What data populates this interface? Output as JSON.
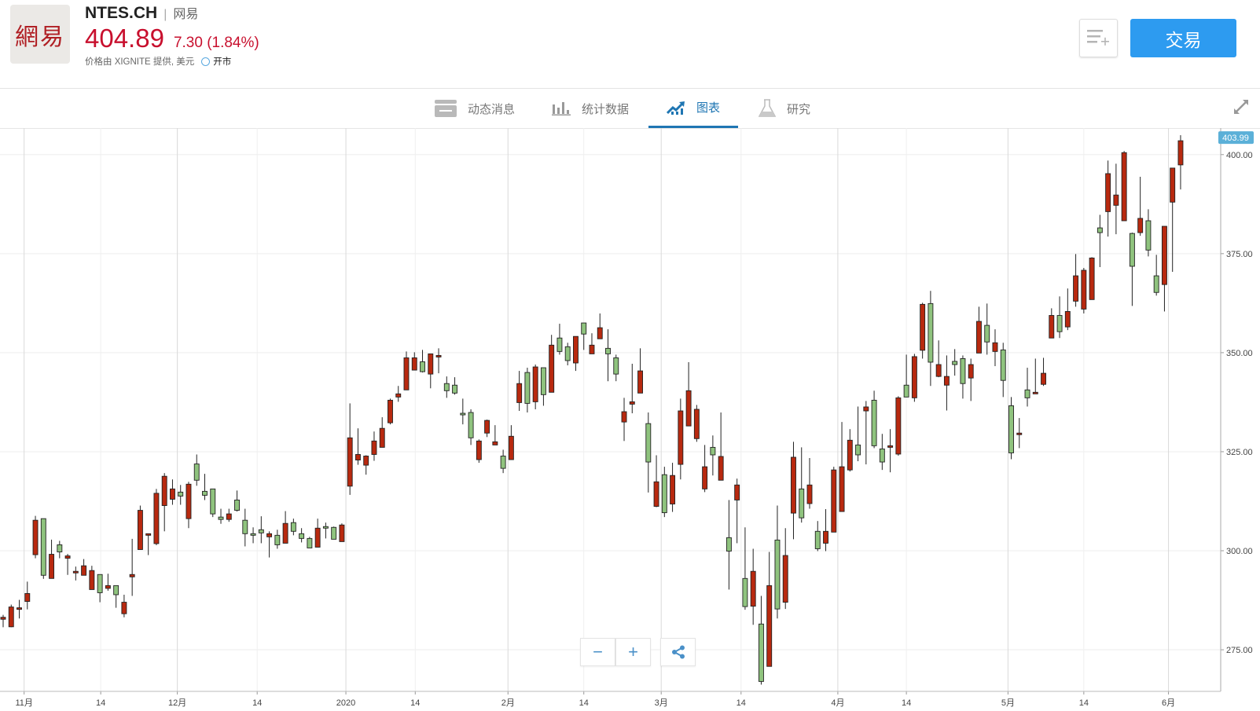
{
  "header": {
    "logo_text": "網易",
    "ticker": "NTES.CH",
    "separator": "|",
    "name": "网易",
    "price": "404.89",
    "change": "7.30 (1.84%)",
    "source": "价格由 XIGNITE 提供, 美元",
    "market_status": "开市",
    "trade_button": "交易",
    "watchlist_icon": "add-to-list-icon",
    "price_color": "#c8102e",
    "accent": "#2d9bf0"
  },
  "tabs": [
    {
      "label": "动态消息",
      "icon": "news-icon",
      "active": false
    },
    {
      "label": "统计数据",
      "icon": "bar-stats-icon",
      "active": false
    },
    {
      "label": "图表",
      "icon": "chart-icon",
      "active": true
    },
    {
      "label": "研究",
      "icon": "flask-icon",
      "active": false
    }
  ],
  "controls": {
    "zoom_out": "−",
    "zoom_in": "+",
    "share_icon": "share-icon",
    "expand_icon": "expand-icon"
  },
  "chart_data": {
    "type": "candlestick",
    "up_color": "#b8290f",
    "down_color": "#8fc37e",
    "last_price_label": "403.99",
    "ylim": [
      264.5,
      406.7
    ],
    "y_ticks": [
      {
        "value": 400,
        "label": "400.00"
      },
      {
        "value": 375,
        "label": "375.00"
      },
      {
        "value": 350,
        "label": "350.00"
      },
      {
        "value": 325,
        "label": "325.00"
      },
      {
        "value": 300,
        "label": "300.00"
      },
      {
        "value": 275,
        "label": "275.00"
      }
    ],
    "x_ticks": [
      {
        "label": "11月",
        "candle": 2.6,
        "major": true
      },
      {
        "label": "14",
        "candle": 12.1,
        "major": false
      },
      {
        "label": "12月",
        "candle": 21.6,
        "major": true
      },
      {
        "label": "14",
        "candle": 31.5,
        "major": false
      },
      {
        "label": "2020",
        "candle": 42.5,
        "major": true
      },
      {
        "label": "14",
        "candle": 51.1,
        "major": false
      },
      {
        "label": "2月",
        "candle": 62.6,
        "major": true
      },
      {
        "label": "14",
        "candle": 72.0,
        "major": false
      },
      {
        "label": "3月",
        "candle": 81.6,
        "major": true
      },
      {
        "label": "14",
        "candle": 91.5,
        "major": false
      },
      {
        "label": "4月",
        "candle": 103.5,
        "major": true
      },
      {
        "label": "14",
        "candle": 112.0,
        "major": false
      },
      {
        "label": "5月",
        "candle": 124.6,
        "major": true
      },
      {
        "label": "14",
        "candle": 134.0,
        "major": false
      },
      {
        "label": "6月",
        "candle": 144.5,
        "major": true
      }
    ],
    "ohlc_fields": [
      "open",
      "high",
      "low",
      "close"
    ],
    "candles": [
      [
        282.7,
        283.8,
        280.7,
        283.2
      ],
      [
        280.8,
        286.4,
        280.7,
        285.8
      ],
      [
        285.2,
        287.6,
        282.9,
        285.6
      ],
      [
        287.2,
        292.2,
        285.2,
        289.2
      ],
      [
        299.0,
        308.8,
        298.1,
        307.7
      ],
      [
        308.1,
        308.1,
        292.9,
        293.8
      ],
      [
        293.0,
        302.8,
        293.0,
        299.1
      ],
      [
        301.5,
        302.5,
        298.1,
        299.7
      ],
      [
        298.1,
        299.2,
        293.9,
        298.7
      ],
      [
        294.4,
        296.0,
        292.5,
        294.8
      ],
      [
        293.8,
        297.9,
        293.8,
        296.2
      ],
      [
        290.2,
        296.2,
        290.2,
        295.0
      ],
      [
        294.0,
        294.0,
        287.0,
        289.4
      ],
      [
        290.5,
        294.2,
        289.9,
        291.2
      ],
      [
        291.2,
        291.2,
        285.6,
        288.9
      ],
      [
        284.1,
        288.9,
        283.2,
        287.0
      ],
      [
        293.4,
        303.0,
        288.6,
        294.0
      ],
      [
        300.3,
        311.4,
        300.3,
        310.2
      ],
      [
        303.9,
        304.3,
        298.9,
        304.3
      ],
      [
        301.8,
        315.6,
        301.4,
        314.5
      ],
      [
        311.4,
        319.6,
        304.9,
        318.8
      ],
      [
        313.0,
        318.0,
        311.6,
        315.6
      ],
      [
        314.8,
        316.6,
        311.6,
        313.8
      ],
      [
        308.1,
        317.4,
        305.7,
        316.8
      ],
      [
        321.9,
        324.3,
        316.4,
        317.8
      ],
      [
        315.0,
        319.4,
        312.8,
        314.0
      ],
      [
        315.6,
        315.6,
        308.5,
        309.3
      ],
      [
        308.5,
        310.6,
        306.8,
        307.9
      ],
      [
        307.9,
        310.6,
        307.3,
        309.3
      ],
      [
        312.8,
        315.2,
        309.9,
        310.2
      ],
      [
        307.7,
        310.6,
        301.1,
        304.3
      ],
      [
        304.3,
        305.9,
        301.9,
        303.9
      ],
      [
        305.3,
        308.7,
        301.9,
        304.5
      ],
      [
        303.5,
        304.9,
        298.3,
        304.3
      ],
      [
        303.9,
        305.3,
        300.5,
        301.5
      ],
      [
        301.9,
        310.0,
        301.9,
        306.9
      ],
      [
        307.1,
        308.1,
        303.9,
        304.9
      ],
      [
        304.3,
        305.7,
        302.1,
        303.1
      ],
      [
        303.1,
        303.5,
        300.7,
        300.7
      ],
      [
        300.9,
        308.1,
        300.9,
        305.7
      ],
      [
        306.1,
        307.1,
        303.1,
        305.7
      ],
      [
        305.9,
        306.1,
        302.9,
        302.9
      ],
      [
        302.3,
        306.9,
        302.3,
        306.5
      ],
      [
        316.3,
        337.2,
        314.1,
        328.5
      ],
      [
        322.9,
        330.9,
        321.7,
        324.3
      ],
      [
        321.6,
        324.1,
        319.2,
        323.9
      ],
      [
        324.3,
        330.1,
        322.7,
        327.7
      ],
      [
        326.1,
        333.7,
        326.1,
        330.9
      ],
      [
        332.3,
        338.4,
        331.9,
        338.0
      ],
      [
        338.8,
        341.6,
        337.6,
        339.6
      ],
      [
        340.6,
        350.3,
        340.6,
        348.7
      ],
      [
        345.6,
        350.1,
        345.6,
        348.7
      ],
      [
        347.7,
        350.7,
        345.0,
        345.2
      ],
      [
        344.6,
        349.7,
        341.0,
        349.7
      ],
      [
        348.9,
        351.1,
        344.8,
        349.3
      ],
      [
        342.2,
        344.0,
        338.6,
        340.4
      ],
      [
        341.8,
        343.8,
        339.4,
        339.8
      ],
      [
        334.7,
        338.4,
        331.9,
        334.3
      ],
      [
        334.9,
        335.7,
        326.7,
        328.5
      ],
      [
        323.0,
        328.1,
        322.2,
        327.7
      ],
      [
        329.7,
        333.1,
        328.7,
        332.9
      ],
      [
        326.7,
        331.7,
        326.7,
        327.5
      ],
      [
        323.9,
        325.5,
        319.6,
        320.8
      ],
      [
        323.0,
        331.7,
        323.0,
        328.9
      ],
      [
        337.4,
        345.4,
        335.3,
        342.2
      ],
      [
        345.0,
        346.2,
        334.9,
        337.2
      ],
      [
        337.6,
        347.0,
        335.7,
        346.4
      ],
      [
        346.2,
        346.2,
        336.6,
        339.4
      ],
      [
        340.0,
        354.5,
        340.0,
        351.9
      ],
      [
        353.7,
        357.3,
        349.5,
        350.3
      ],
      [
        351.5,
        352.5,
        346.8,
        348.0
      ],
      [
        347.4,
        354.1,
        345.4,
        354.1
      ],
      [
        357.5,
        357.5,
        350.7,
        354.7
      ],
      [
        349.7,
        354.9,
        349.7,
        351.9
      ],
      [
        353.5,
        359.9,
        353.5,
        356.3
      ],
      [
        351.1,
        355.9,
        342.8,
        349.7
      ],
      [
        348.7,
        349.5,
        342.8,
        344.6
      ],
      [
        332.5,
        338.6,
        327.7,
        335.1
      ],
      [
        337.0,
        347.2,
        334.7,
        337.6
      ],
      [
        339.8,
        351.1,
        339.8,
        345.4
      ],
      [
        332.1,
        334.9,
        314.7,
        322.4
      ],
      [
        311.2,
        324.1,
        311.0,
        317.4
      ],
      [
        319.2,
        321.2,
        308.5,
        309.6
      ],
      [
        311.8,
        322.2,
        309.8,
        319.0
      ],
      [
        321.8,
        338.4,
        318.0,
        335.3
      ],
      [
        331.5,
        347.6,
        331.5,
        340.4
      ],
      [
        328.3,
        336.8,
        327.5,
        335.7
      ],
      [
        315.6,
        326.7,
        314.8,
        321.2
      ],
      [
        326.1,
        329.1,
        319.0,
        324.2
      ],
      [
        317.8,
        334.9,
        317.8,
        323.8
      ],
      [
        303.3,
        312.8,
        290.2,
        299.9
      ],
      [
        312.8,
        318.2,
        301.9,
        316.6
      ],
      [
        293.0,
        305.9,
        285.1,
        285.9
      ],
      [
        286.0,
        300.5,
        281.3,
        294.8
      ],
      [
        281.5,
        288.6,
        266.2,
        267.0
      ],
      [
        270.8,
        299.7,
        270.8,
        291.2
      ],
      [
        302.7,
        311.4,
        282.9,
        285.3
      ],
      [
        287.0,
        305.7,
        285.3,
        298.8
      ],
      [
        309.5,
        327.5,
        302.9,
        323.6
      ],
      [
        315.6,
        326.1,
        307.1,
        308.3
      ],
      [
        311.9,
        323.4,
        310.6,
        316.6
      ],
      [
        304.9,
        307.5,
        299.9,
        300.5
      ],
      [
        301.9,
        310.5,
        299.9,
        304.9
      ],
      [
        304.7,
        321.2,
        304.7,
        320.4
      ],
      [
        309.9,
        332.5,
        309.9,
        321.2
      ],
      [
        320.4,
        330.7,
        320.0,
        327.9
      ],
      [
        326.7,
        336.4,
        322.6,
        324.2
      ],
      [
        335.3,
        337.8,
        321.8,
        336.3
      ],
      [
        338.0,
        340.4,
        325.9,
        326.5
      ],
      [
        325.7,
        329.5,
        320.4,
        322.4
      ],
      [
        326.1,
        330.7,
        319.8,
        326.5
      ],
      [
        324.4,
        339.0,
        324.0,
        338.6
      ],
      [
        341.8,
        349.5,
        338.8,
        338.8
      ],
      [
        338.6,
        349.7,
        337.6,
        349.0
      ],
      [
        350.6,
        362.6,
        348.5,
        362.2
      ],
      [
        362.4,
        365.6,
        341.6,
        347.6
      ],
      [
        344.0,
        353.1,
        343.8,
        347.0
      ],
      [
        341.8,
        349.3,
        335.4,
        344.0
      ],
      [
        347.8,
        350.9,
        344.2,
        347.0
      ],
      [
        348.5,
        349.3,
        338.4,
        342.2
      ],
      [
        343.6,
        348.5,
        337.8,
        347.0
      ],
      [
        349.9,
        361.6,
        349.9,
        357.9
      ],
      [
        356.9,
        362.4,
        349.5,
        352.7
      ],
      [
        350.3,
        355.9,
        346.6,
        352.5
      ],
      [
        350.7,
        352.5,
        338.8,
        343.0
      ],
      [
        336.6,
        338.8,
        323.1,
        324.7
      ],
      [
        329.3,
        333.5,
        325.9,
        329.7
      ],
      [
        340.6,
        346.2,
        336.4,
        338.6
      ],
      [
        339.6,
        348.5,
        339.6,
        340.0
      ],
      [
        342.0,
        348.7,
        341.6,
        344.8
      ],
      [
        353.7,
        361.2,
        353.7,
        359.4
      ],
      [
        359.4,
        364.2,
        353.7,
        355.3
      ],
      [
        356.5,
        366.2,
        355.7,
        360.4
      ],
      [
        363.0,
        374.9,
        361.6,
        369.4
      ],
      [
        361.0,
        371.4,
        359.9,
        370.8
      ],
      [
        363.4,
        374.1,
        363.4,
        373.9
      ],
      [
        381.5,
        384.8,
        371.6,
        380.3
      ],
      [
        385.6,
        398.5,
        379.3,
        395.2
      ],
      [
        387.2,
        397.7,
        379.9,
        389.8
      ],
      [
        383.3,
        400.9,
        383.3,
        400.5
      ],
      [
        380.1,
        380.3,
        361.8,
        371.8
      ],
      [
        380.3,
        394.4,
        379.5,
        383.9
      ],
      [
        383.3,
        386.2,
        374.3,
        375.9
      ],
      [
        369.4,
        374.7,
        364.4,
        365.2
      ],
      [
        367.2,
        381.9,
        360.4,
        381.9
      ],
      [
        388.0,
        396.6,
        370.4,
        396.6
      ],
      [
        397.4,
        404.9,
        391.2,
        403.5
      ]
    ]
  }
}
